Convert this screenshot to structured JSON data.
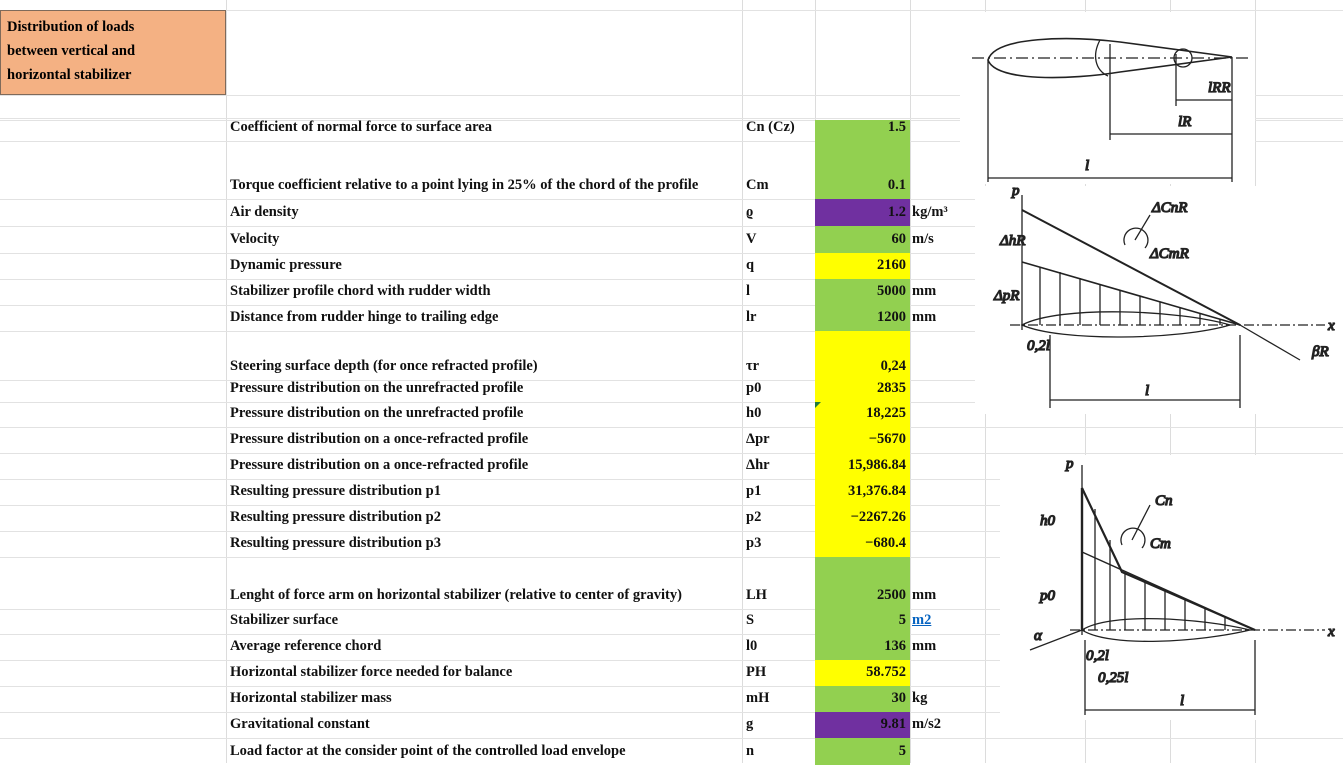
{
  "title": "Distribution of loads between vertical and horizontal stabilizer",
  "rows": [
    {
      "label": "Coefficient of normal force to surface area",
      "symbol": "Cn (Cz)",
      "value": "1.5",
      "color": "#92d050"
    },
    {
      "label": "Torque coefficient relative to a point lying in 25% of the chord of the profile",
      "symbol": "Cm",
      "value": "0.1",
      "color": "#92d050"
    },
    {
      "label": "Air density",
      "symbol": "ϱ",
      "value": "1.2",
      "unit": "kg/m³",
      "color": "#7030a0"
    },
    {
      "label": "Velocity",
      "symbol": "V",
      "value": "60",
      "unit": "m/s",
      "color": "#92d050"
    },
    {
      "label": "Dynamic pressure",
      "symbol": "q",
      "value": "2160",
      "color": "#ffff00"
    },
    {
      "label": "Stabilizer profile chord with rudder width",
      "symbol": "l",
      "value": "5000",
      "unit": "mm",
      "color": "#92d050"
    },
    {
      "label": "Distance from rudder hinge to trailing edge",
      "symbol": "lr",
      "value": "1200",
      "unit": "mm",
      "color": "#92d050"
    },
    {
      "label": "Steering surface depth (for once refracted profile)",
      "symbol": "τr",
      "value": "0,24",
      "color": "#ffff00"
    },
    {
      "label": "Pressure distribution on the unrefracted profile",
      "symbol": "p0",
      "value": "2835",
      "color": "#ffff00"
    },
    {
      "label": "Pressure distribution on the unrefracted profile",
      "symbol": "h0",
      "value": "18,225",
      "color": "#ffff00"
    },
    {
      "label": "Pressure distribution on a once-refracted profile",
      "symbol": "Δpr",
      "value": "−5670",
      "color": "#ffff00"
    },
    {
      "label": "Pressure distribution on a once-refracted profile",
      "symbol": "Δhr",
      "value": "15,986.84",
      "color": "#ffff00"
    },
    {
      "label": "Resulting pressure distribution p1",
      "symbol": "p1",
      "value": "31,376.84",
      "color": "#ffff00"
    },
    {
      "label": "Resulting pressure distribution p2",
      "symbol": "p2",
      "value": "−2267.26",
      "color": "#ffff00"
    },
    {
      "label": "Resulting pressure distribution p3",
      "symbol": "p3",
      "value": "−680.4",
      "color": "#ffff00"
    },
    {
      "label": "Lenght of force arm on horizontal stabilizer (relative to center of gravity)",
      "symbol": "LH",
      "value": "2500",
      "unit": "mm",
      "color": "#92d050"
    },
    {
      "label": "Stabilizer surface",
      "symbol": "S",
      "value": "5",
      "unit": "m2",
      "unit_link": true,
      "color": "#92d050"
    },
    {
      "label": "Average reference chord",
      "symbol": "l0",
      "value": "136",
      "unit": "mm",
      "color": "#92d050"
    },
    {
      "label": "Horizontal stabilizer force needed for balance",
      "symbol": "PH",
      "value": "58.752",
      "color": "#ffff00"
    },
    {
      "label": "Horizontal stabilizer mass",
      "symbol": "mH",
      "value": "30",
      "unit": "kg",
      "color": "#92d050"
    },
    {
      "label": "Gravitational constant",
      "symbol": "g",
      "value": "9.81",
      "unit": "m/s2",
      "color": "#7030a0"
    },
    {
      "label": "Load factor at the consider point of the controlled load envelope",
      "symbol": "n",
      "value": "5",
      "color": "#92d050"
    }
  ],
  "diagrams": {
    "chord": [
      "lRR",
      "lR",
      "l"
    ],
    "refracted": [
      "p",
      "ΔhR",
      "ΔCnR",
      "ΔCmR",
      "ΔpR",
      "x",
      "βR",
      "0,2l",
      "l"
    ],
    "unrefracted": [
      "p",
      "Cn",
      "Cm",
      "h0",
      "p0",
      "x",
      "α",
      "0,2l",
      "0,25l",
      "l"
    ]
  }
}
